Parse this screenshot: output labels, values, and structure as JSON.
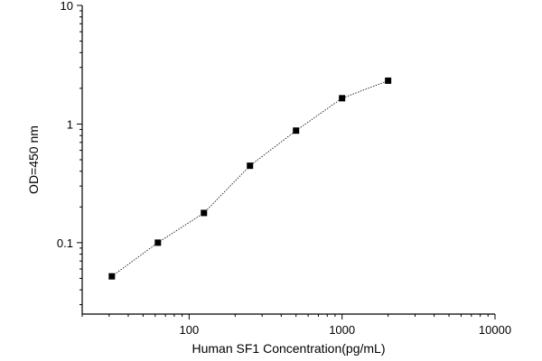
{
  "chart_data": {
    "type": "line",
    "xlabel": "Human SF1 Concentration(pg/mL)",
    "ylabel": "OD=450 nm",
    "xscale": "log",
    "yscale": "log",
    "xlim": [
      20,
      10000
    ],
    "ylim": [
      0.025,
      10
    ],
    "x_ticks": [
      {
        "value": 100,
        "label": "100"
      },
      {
        "value": 1000,
        "label": "1000"
      },
      {
        "value": 10000,
        "label": "10000"
      }
    ],
    "y_ticks": [
      {
        "value": 0.1,
        "label": "0.1"
      },
      {
        "value": 1,
        "label": "1"
      },
      {
        "value": 10,
        "label": "10"
      }
    ],
    "grid": false,
    "series": [
      {
        "marker": "square",
        "line_style": "dotted",
        "x": [
          31.25,
          62.5,
          125,
          250,
          500,
          1000,
          2000
        ],
        "y": [
          0.052,
          0.1,
          0.178,
          0.445,
          0.88,
          1.65,
          2.32
        ]
      }
    ]
  }
}
